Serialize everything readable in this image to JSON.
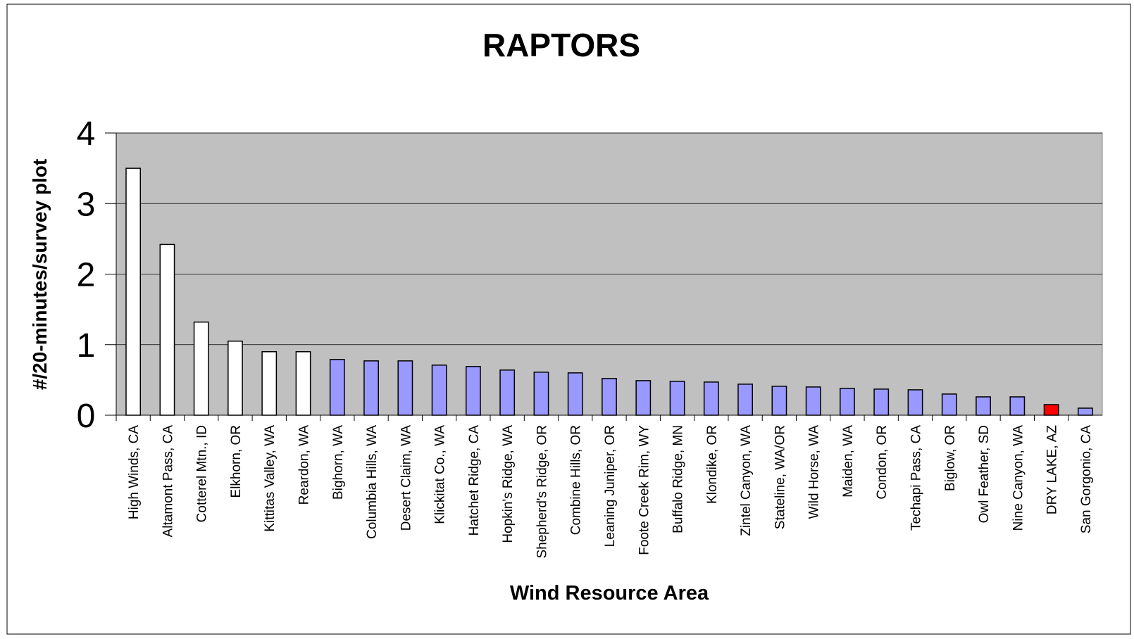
{
  "chart_data": {
    "type": "bar",
    "title": "RAPTORS",
    "x_label": "Wind Resource Area",
    "y_label": "#/20-minutes/survey plot",
    "categories": [
      "High Winds, CA",
      "Altamont Pass, CA",
      "Cotterel Mtn., ID",
      "Elkhorn, OR",
      "Kittitas Valley, WA",
      "Reardon, WA",
      "Bighorn, WA",
      "Columbia Hills, WA",
      "Desert Claim, WA",
      "Klickitat Co., WA",
      "Hatchet Ridge, CA",
      "Hopkin's Ridge, WA",
      "Shepherd's Ridge, OR",
      "Combine Hills, OR",
      "Leaning Juniper, OR",
      "Foote Creek Rim, WY",
      "Buffalo Ridge, MN",
      "Klondike, OR",
      "Zintel Canyon, WA",
      "Stateline, WA/OR",
      "Wild Horse, WA",
      "Maiden, WA",
      "Condon, OR",
      "Techapi Pass, CA",
      "Biglow, OR",
      "Owl Feather, SD",
      "Nine Canyon, WA",
      "DRY LAKE, AZ",
      "San Gorgonio, CA"
    ],
    "values": [
      3.5,
      2.42,
      1.32,
      1.05,
      0.9,
      0.9,
      0.79,
      0.77,
      0.77,
      0.71,
      0.69,
      0.64,
      0.61,
      0.6,
      0.52,
      0.49,
      0.48,
      0.47,
      0.44,
      0.41,
      0.4,
      0.38,
      0.37,
      0.36,
      0.3,
      0.26,
      0.26,
      0.15,
      0.1
    ],
    "colors": [
      "#ffffff",
      "#ffffff",
      "#ffffff",
      "#ffffff",
      "#ffffff",
      "#ffffff",
      "#9999ff",
      "#9999ff",
      "#9999ff",
      "#9999ff",
      "#9999ff",
      "#9999ff",
      "#9999ff",
      "#9999ff",
      "#9999ff",
      "#9999ff",
      "#9999ff",
      "#9999ff",
      "#9999ff",
      "#9999ff",
      "#9999ff",
      "#9999ff",
      "#9999ff",
      "#9999ff",
      "#9999ff",
      "#9999ff",
      "#9999ff",
      "#ff0000",
      "#9999ff"
    ],
    "ylim": [
      0,
      4
    ],
    "yticks": [
      0,
      1,
      2,
      3,
      4
    ],
    "grid": true,
    "plot_background": "#c0c0c0"
  }
}
